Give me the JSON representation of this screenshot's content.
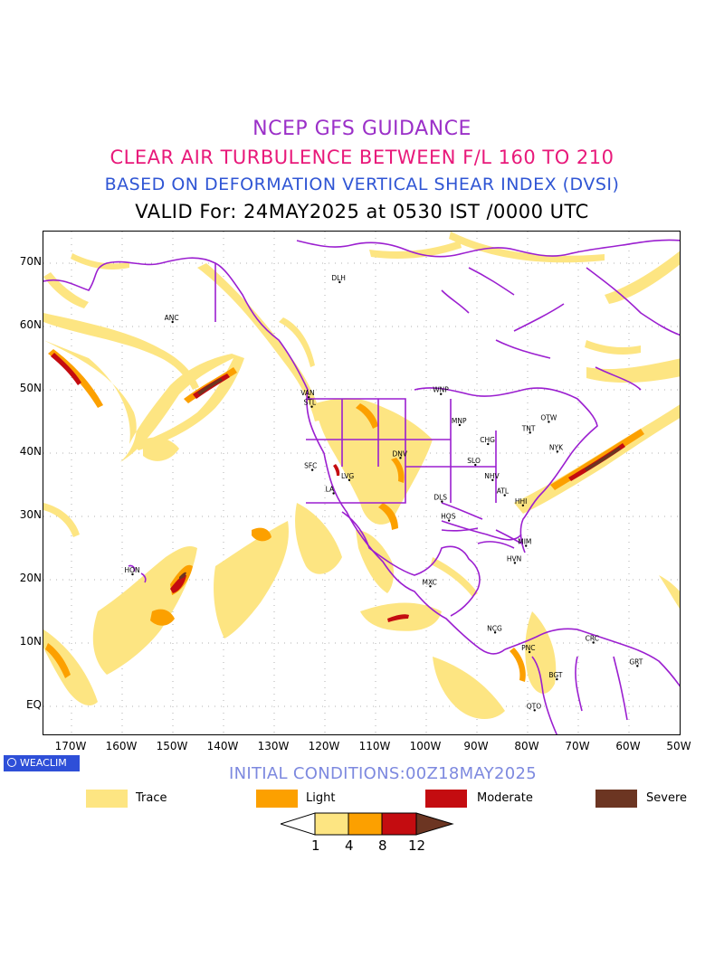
{
  "titles": {
    "line1": "NCEP GFS GUIDANCE",
    "line2": "CLEAR AIR TURBULENCE BETWEEN F/L 160 TO 210",
    "line3": "BASED ON DEFORMATION VERTICAL SHEAR INDEX (DVSI)",
    "line4": "VALID For: 24MAY2025 at 0530 IST /0000 UTC"
  },
  "map": {
    "lat_labels": [
      "70N",
      "60N",
      "50N",
      "40N",
      "30N",
      "20N",
      "10N",
      "EQ"
    ],
    "lon_labels": [
      "170W",
      "160W",
      "150W",
      "140W",
      "130W",
      "120W",
      "110W",
      "100W",
      "90W",
      "80W",
      "70W",
      "60W",
      "50W"
    ],
    "stations": [
      {
        "code": "ANC",
        "lon": -150.0,
        "lat": 61.2
      },
      {
        "code": "DLH",
        "lon": -117.0,
        "lat": 67.5
      },
      {
        "code": "VAN",
        "lon": -123.1,
        "lat": 49.3
      },
      {
        "code": "STL",
        "lon": -122.5,
        "lat": 47.8
      },
      {
        "code": "WNP",
        "lon": -97.0,
        "lat": 49.8
      },
      {
        "code": "MNP",
        "lon": -93.3,
        "lat": 44.9
      },
      {
        "code": "CHG",
        "lon": -87.7,
        "lat": 41.9
      },
      {
        "code": "TNT",
        "lon": -79.4,
        "lat": 43.7
      },
      {
        "code": "OTW",
        "lon": -75.7,
        "lat": 45.4
      },
      {
        "code": "NYK",
        "lon": -74.0,
        "lat": 40.7
      },
      {
        "code": "DNV",
        "lon": -105.0,
        "lat": 39.7
      },
      {
        "code": "SFC",
        "lon": -122.4,
        "lat": 37.8
      },
      {
        "code": "LVG",
        "lon": -115.1,
        "lat": 36.2
      },
      {
        "code": "LA",
        "lon": -118.2,
        "lat": 34.1
      },
      {
        "code": "SLO",
        "lon": -90.2,
        "lat": 38.6
      },
      {
        "code": "NHV",
        "lon": -86.8,
        "lat": 36.2
      },
      {
        "code": "ATL",
        "lon": -84.4,
        "lat": 33.8
      },
      {
        "code": "HHI",
        "lon": -80.8,
        "lat": 32.2
      },
      {
        "code": "DLS",
        "lon": -96.8,
        "lat": 32.8
      },
      {
        "code": "HOS",
        "lon": -95.4,
        "lat": 29.8
      },
      {
        "code": "MIM",
        "lon": -80.2,
        "lat": 25.8
      },
      {
        "code": "HVN",
        "lon": -82.4,
        "lat": 23.1
      },
      {
        "code": "MXC",
        "lon": -99.1,
        "lat": 19.4
      },
      {
        "code": "HON",
        "lon": -157.9,
        "lat": 21.3
      },
      {
        "code": "NCG",
        "lon": -86.3,
        "lat": 12.1
      },
      {
        "code": "PNC",
        "lon": -79.5,
        "lat": 9.0
      },
      {
        "code": "BGT",
        "lon": -74.1,
        "lat": 4.7
      },
      {
        "code": "CRC",
        "lon": -66.9,
        "lat": 10.5
      },
      {
        "code": "GRT",
        "lon": -58.2,
        "lat": 6.8
      },
      {
        "code": "QTO",
        "lon": -78.5,
        "lat": -0.2
      }
    ]
  },
  "logo": "WEACLIM",
  "initial_conditions": "INITIAL CONDITIONS:00Z18MAY2025",
  "legend": [
    {
      "label": "Trace",
      "color": "#fde582"
    },
    {
      "label": "Light",
      "color": "#fca000"
    },
    {
      "label": "Moderate",
      "color": "#c40c10"
    },
    {
      "label": "Severe",
      "color": "#6c3522"
    }
  ],
  "colorbar": {
    "ticks": [
      "1",
      "4",
      "8",
      "12"
    ],
    "colors": [
      "#fde582",
      "#fca000",
      "#c40c10",
      "#6c3522"
    ]
  }
}
